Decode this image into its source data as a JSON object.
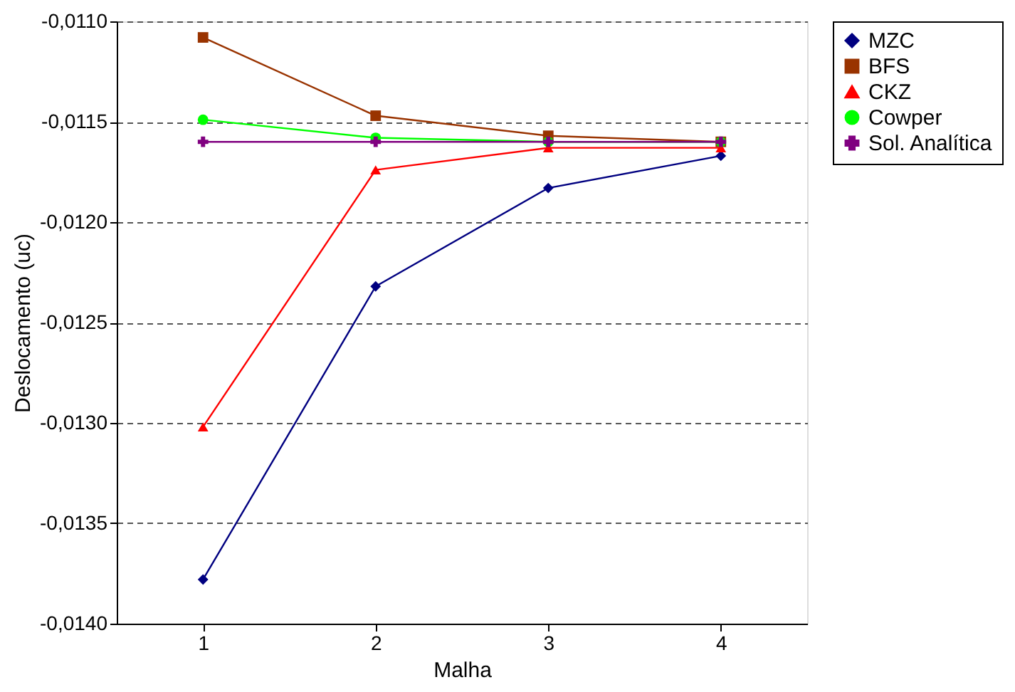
{
  "chart_data": {
    "type": "line",
    "xlabel": "Malha",
    "ylabel": "Deslocamento (uc)",
    "categories": [
      "1",
      "2",
      "3",
      "4"
    ],
    "series": [
      {
        "name": "MZC",
        "color": "#000080",
        "marker": "diamond",
        "values": [
          -0.01378,
          -0.01232,
          -0.01183,
          -0.01167
        ]
      },
      {
        "name": "BFS",
        "color": "#993300",
        "marker": "square",
        "values": [
          -0.01108,
          -0.01147,
          -0.01157,
          -0.0116
        ]
      },
      {
        "name": "CKZ",
        "color": "#ff0000",
        "marker": "triangle",
        "values": [
          -0.01302,
          -0.01174,
          -0.01163,
          -0.01163
        ]
      },
      {
        "name": "Cowper",
        "color": "#00ff00",
        "marker": "circle",
        "values": [
          -0.01149,
          -0.01158,
          -0.0116,
          -0.0116
        ]
      },
      {
        "name": "Sol. Analítica",
        "color": "#800080",
        "marker": "cross",
        "values": [
          -0.0116,
          -0.0116,
          -0.0116,
          -0.0116
        ]
      }
    ],
    "ylim": [
      -0.014,
      -0.011
    ],
    "yticks": [
      {
        "value": -0.014,
        "label": "-0,0140"
      },
      {
        "value": -0.0135,
        "label": "-0,0135"
      },
      {
        "value": -0.013,
        "label": "-0,0130"
      },
      {
        "value": -0.0125,
        "label": "-0,0125"
      },
      {
        "value": -0.012,
        "label": "-0,0120"
      },
      {
        "value": -0.0115,
        "label": "-0,0115"
      },
      {
        "value": -0.011,
        "label": "-0,0110"
      }
    ],
    "grid": "y",
    "line_style": "solid",
    "legend": "right"
  }
}
